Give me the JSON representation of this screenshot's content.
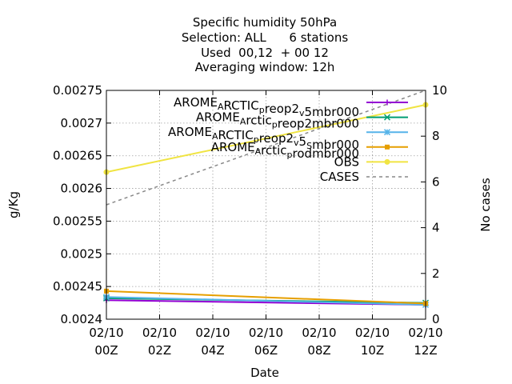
{
  "chart_data": {
    "type": "line",
    "title_lines": [
      "Specific humidity 50hPa",
      "Selection: ALL      6 stations",
      "Used  00,12  + 00 12",
      "Averaging window: 12h"
    ],
    "xlabel": "Date",
    "ylabel": "g/Kg",
    "y2label": "No cases",
    "x_ticks": [
      {
        "hour": 0,
        "line1": "02/10",
        "line2": "00Z"
      },
      {
        "hour": 2,
        "line1": "02/10",
        "line2": "02Z"
      },
      {
        "hour": 4,
        "line1": "02/10",
        "line2": "04Z"
      },
      {
        "hour": 6,
        "line1": "02/10",
        "line2": "06Z"
      },
      {
        "hour": 8,
        "line1": "02/10",
        "line2": "08Z"
      },
      {
        "hour": 10,
        "line1": "02/10",
        "line2": "10Z"
      },
      {
        "hour": 12,
        "line1": "02/10",
        "line2": "12Z"
      }
    ],
    "xlim": [
      0,
      12
    ],
    "ylim": [
      0.0024,
      0.00275
    ],
    "y_ticks": [
      "0.0024",
      "0.00245",
      "0.0025",
      "0.00255",
      "0.0026",
      "0.00265",
      "0.0027",
      "0.00275"
    ],
    "y2lim": [
      0,
      10
    ],
    "y2_ticks": [
      "0",
      "2",
      "4",
      "6",
      "8",
      "10"
    ],
    "grid": true,
    "legend_position": "top-right",
    "series": [
      {
        "name": "AROME_ARCTIC_preop2_v_5mbr000",
        "legend_parts": [
          [
            "AROME",
            ""
          ],
          [
            "A",
            "sub"
          ],
          [
            "RCTIC",
            ""
          ],
          [
            "p",
            "sub"
          ],
          [
            "reop2",
            ""
          ],
          [
            "v",
            "sub"
          ],
          [
            "5mbr000",
            ""
          ]
        ],
        "color": "#9400d3",
        "marker": "plus",
        "axis": "y",
        "x": [
          0,
          12
        ],
        "y": [
          0.002429,
          0.002422
        ]
      },
      {
        "name": "AROME_Arctic_preop2mbr000",
        "legend_parts": [
          [
            "AROME",
            ""
          ],
          [
            "A",
            "sub"
          ],
          [
            "rctic",
            ""
          ],
          [
            "p",
            "sub"
          ],
          [
            "reop2mbr000",
            ""
          ]
        ],
        "color": "#009e73",
        "marker": "cross",
        "axis": "y",
        "x": [
          0,
          12
        ],
        "y": [
          0.002432,
          0.002425
        ]
      },
      {
        "name": "AROME_ARCTIC_preop2_v_5_Smbr000",
        "legend_parts": [
          [
            "AROME",
            ""
          ],
          [
            "A",
            "sub"
          ],
          [
            "RCTIC",
            ""
          ],
          [
            "p",
            "sub"
          ],
          [
            "reop2",
            ""
          ],
          [
            "v",
            "sub"
          ],
          [
            "5",
            ""
          ],
          [
            "S",
            "sub"
          ],
          [
            "mbr000",
            ""
          ]
        ],
        "color": "#56b4e9",
        "marker": "star",
        "axis": "y",
        "x": [
          0,
          12
        ],
        "y": [
          0.002434,
          0.002422
        ]
      },
      {
        "name": "AROME_Arctic_prodmbr000",
        "legend_parts": [
          [
            "AROME",
            ""
          ],
          [
            "A",
            "sub"
          ],
          [
            "rctic",
            ""
          ],
          [
            "p",
            "sub"
          ],
          [
            "rodmbr000",
            ""
          ]
        ],
        "color": "#e69f00",
        "marker": "square",
        "axis": "y",
        "x": [
          0,
          12
        ],
        "y": [
          0.002443,
          0.002424
        ]
      },
      {
        "name": "OBS",
        "legend_parts": [
          [
            "OBS",
            ""
          ]
        ],
        "color": "#f0e442",
        "marker": "circle",
        "axis": "y",
        "x": [
          0,
          12
        ],
        "y": [
          0.002625,
          0.002728
        ]
      },
      {
        "name": "CASES",
        "legend_parts": [
          [
            "CASES",
            ""
          ]
        ],
        "color": "#888888",
        "marker": "none",
        "dashed": true,
        "axis": "y2",
        "x": [
          0,
          12
        ],
        "y": [
          5,
          10
        ]
      }
    ]
  }
}
